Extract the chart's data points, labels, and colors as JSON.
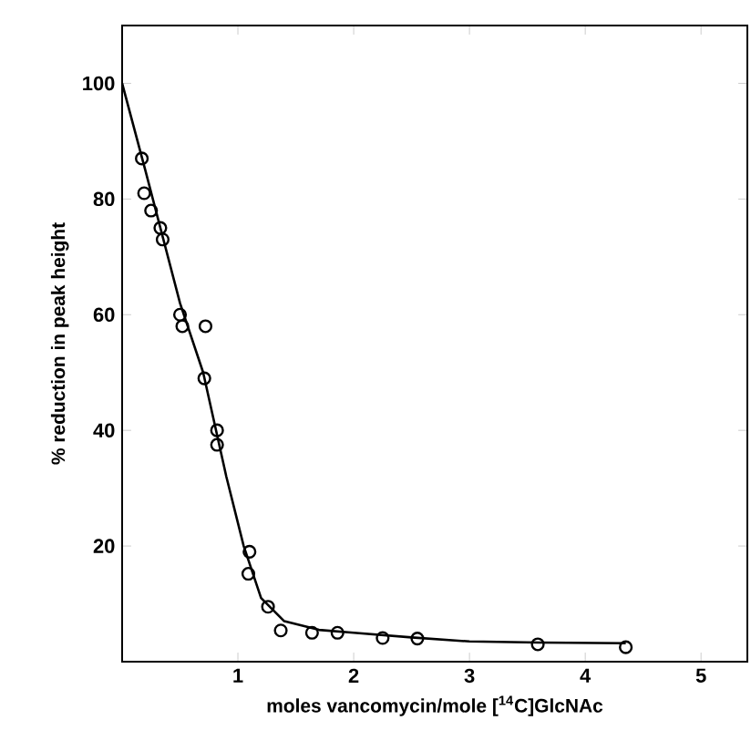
{
  "chart_data": {
    "type": "scatter",
    "xlabel": "moles vancomycin/mole [$^{14}$C]GlcNAc",
    "ylabel": "% reduction in peak height",
    "xlim": [
      0,
      5.4
    ],
    "ylim": [
      0,
      110
    ],
    "xticks": [
      1,
      2,
      3,
      4,
      5
    ],
    "yticks": [
      20,
      40,
      60,
      80,
      100
    ],
    "grid": false,
    "series": [
      {
        "color": "#000000",
        "marker": "circle",
        "x": [
          0.17,
          0.19,
          0.25,
          0.33,
          0.35,
          0.5,
          0.52,
          0.72,
          0.71,
          0.82,
          0.82,
          1.1,
          1.09,
          1.26,
          1.37,
          1.64,
          1.86,
          2.25,
          2.55,
          3.59,
          4.35
        ],
        "values": [
          87,
          81,
          78,
          75,
          73,
          60,
          58,
          58,
          49,
          40,
          37.5,
          19,
          15.2,
          9.5,
          5.4,
          5,
          5,
          4.1,
          4,
          3,
          2.5
        ]
      },
      {
        "type": "line",
        "color": "#000000",
        "line_style": "solid",
        "x": [
          0,
          0.2,
          0.5,
          0.7,
          0.9,
          1.05,
          1.2,
          1.4,
          1.7,
          2,
          2.5,
          3,
          3.6,
          4.35
        ],
        "values": [
          100,
          85,
          62,
          50,
          32,
          20,
          11,
          7,
          5.5,
          5,
          4.2,
          3.5,
          3.3,
          3.2
        ]
      }
    ]
  }
}
